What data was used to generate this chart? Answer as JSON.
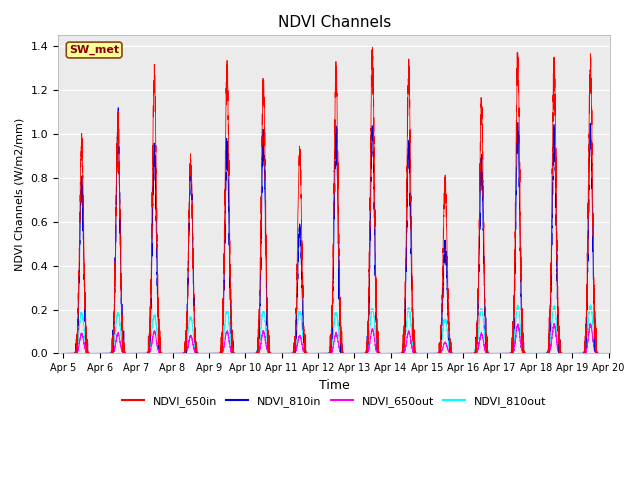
{
  "title": "NDVI Channels",
  "xlabel": "Time",
  "ylabel": "NDVI Channels (W/m2/mm)",
  "ylim": [
    0,
    1.45
  ],
  "colors": {
    "NDVI_650in": "#FF0000",
    "NDVI_810in": "#0000DD",
    "NDVI_650out": "#FF00FF",
    "NDVI_810out": "#00FFFF"
  },
  "site_label": "SW_met",
  "x_tick_labels": [
    "Apr 5",
    "Apr 6",
    "Apr 7",
    "Apr 8",
    "Apr 9",
    "Apr 10",
    "Apr 11",
    "Apr 12",
    "Apr 13",
    "Apr 14",
    "Apr 15",
    "Apr 16",
    "Apr 17",
    "Apr 18",
    "Apr 19",
    "Apr 20"
  ],
  "day_peaks_650in": [
    0.95,
    1.06,
    1.26,
    0.88,
    1.27,
    1.24,
    0.91,
    1.29,
    1.35,
    1.27,
    0.78,
    1.11,
    1.33,
    1.32,
    1.31
  ],
  "day_peaks_810in": [
    0.77,
    1.04,
    0.92,
    0.85,
    0.94,
    0.96,
    0.57,
    0.97,
    1.01,
    0.94,
    0.5,
    0.84,
    1.0,
    0.99,
    1.0
  ],
  "day_peaks_650out": [
    0.09,
    0.09,
    0.1,
    0.08,
    0.1,
    0.1,
    0.08,
    0.09,
    0.11,
    0.1,
    0.05,
    0.09,
    0.13,
    0.13,
    0.13
  ],
  "day_peaks_810out": [
    0.19,
    0.19,
    0.18,
    0.17,
    0.2,
    0.2,
    0.2,
    0.19,
    0.21,
    0.21,
    0.16,
    0.21,
    0.22,
    0.22,
    0.22
  ],
  "background_color": "#EBEBEB",
  "figure_bg": "#FFFFFF",
  "linewidth_in": 0.6,
  "linewidth_out": 0.7
}
